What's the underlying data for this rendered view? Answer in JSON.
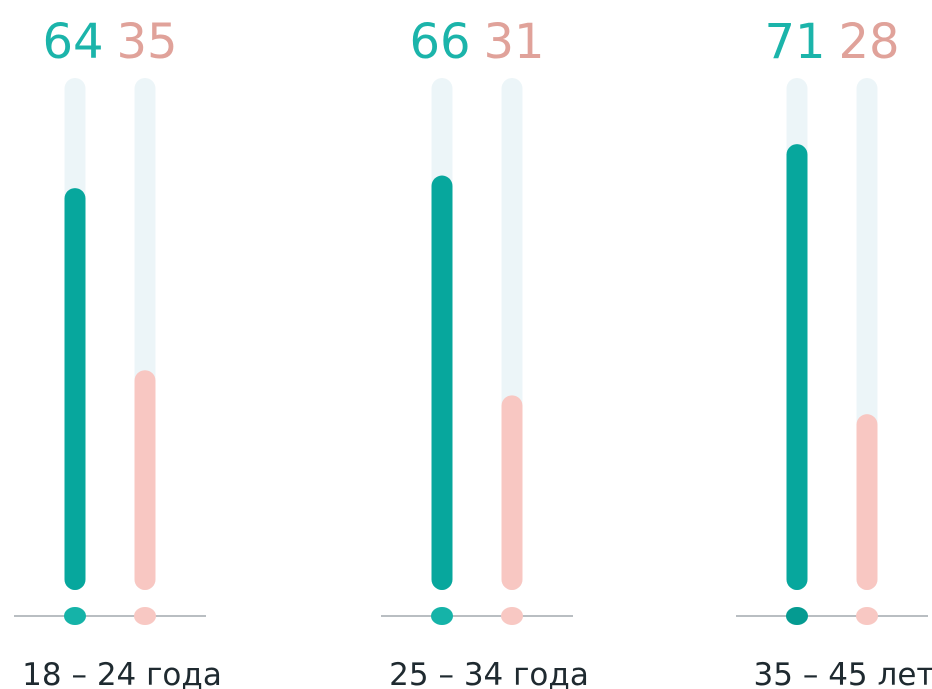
{
  "chart_data": {
    "type": "bar",
    "categories": [
      "18 – 24 года",
      "25 – 34 года",
      "35 – 45 лет"
    ],
    "series": [
      {
        "values": [
          64,
          66,
          71
        ]
      },
      {
        "values": [
          35,
          31,
          28
        ]
      }
    ],
    "ylim": [
      0,
      80
    ],
    "grid": false,
    "legend": "none"
  },
  "colors": {
    "series_1": "#07a79d",
    "series_1_label": "#1bb4aa",
    "series_1_dot": "#15b3a8",
    "series_1_dot_last": "#059b91",
    "series_2": "#f8c7c2",
    "series_2_label": "#e0a29a",
    "series_2_dot": "#f8c8c3",
    "track": "#ecf5f8",
    "baseline": "#b9bec2",
    "category_label": "#1f2a30"
  }
}
